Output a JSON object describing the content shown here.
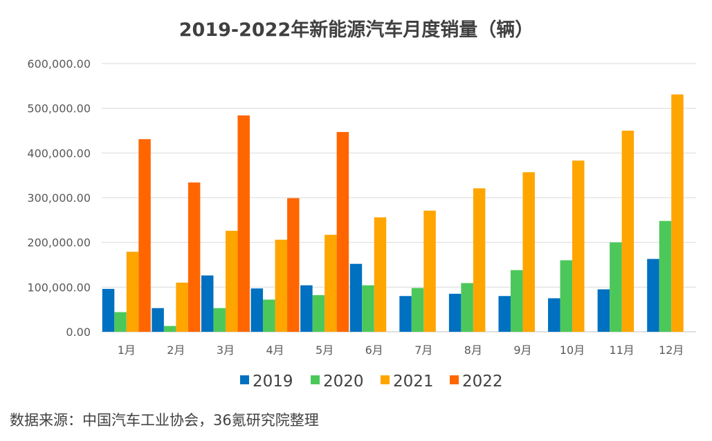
{
  "chart_data": {
    "type": "bar",
    "title": "2019-2022年新能源汽车月度销量（辆）",
    "categories": [
      "1月",
      "2月",
      "3月",
      "4月",
      "5月",
      "6月",
      "7月",
      "8月",
      "9月",
      "10月",
      "11月",
      "12月"
    ],
    "series": [
      {
        "name": "2019",
        "color": "#0070C0",
        "values": [
          96000,
          53000,
          126000,
          97000,
          104000,
          152000,
          80000,
          85000,
          80000,
          75000,
          95000,
          163000
        ]
      },
      {
        "name": "2020",
        "color": "#4CC85A",
        "values": [
          44000,
          13000,
          53000,
          72000,
          82000,
          104000,
          98000,
          109000,
          138000,
          160000,
          200000,
          248000
        ]
      },
      {
        "name": "2021",
        "color": "#FFA500",
        "values": [
          179000,
          110000,
          226000,
          206000,
          217000,
          256000,
          271000,
          321000,
          357000,
          383000,
          450000,
          531000
        ]
      },
      {
        "name": "2022",
        "color": "#FF6600",
        "values": [
          431000,
          334000,
          484000,
          299000,
          447000,
          null,
          null,
          null,
          null,
          null,
          null,
          null
        ]
      }
    ],
    "ylim": [
      0,
      600000
    ],
    "yticks": [
      "0.00",
      "100,000.00",
      "200,000.00",
      "300,000.00",
      "400,000.00",
      "500,000.00",
      "600,000.00"
    ],
    "grid": true,
    "legend": "bottom"
  },
  "source_note": "数据来源：中国汽车工业协会，36氪研究院整理"
}
